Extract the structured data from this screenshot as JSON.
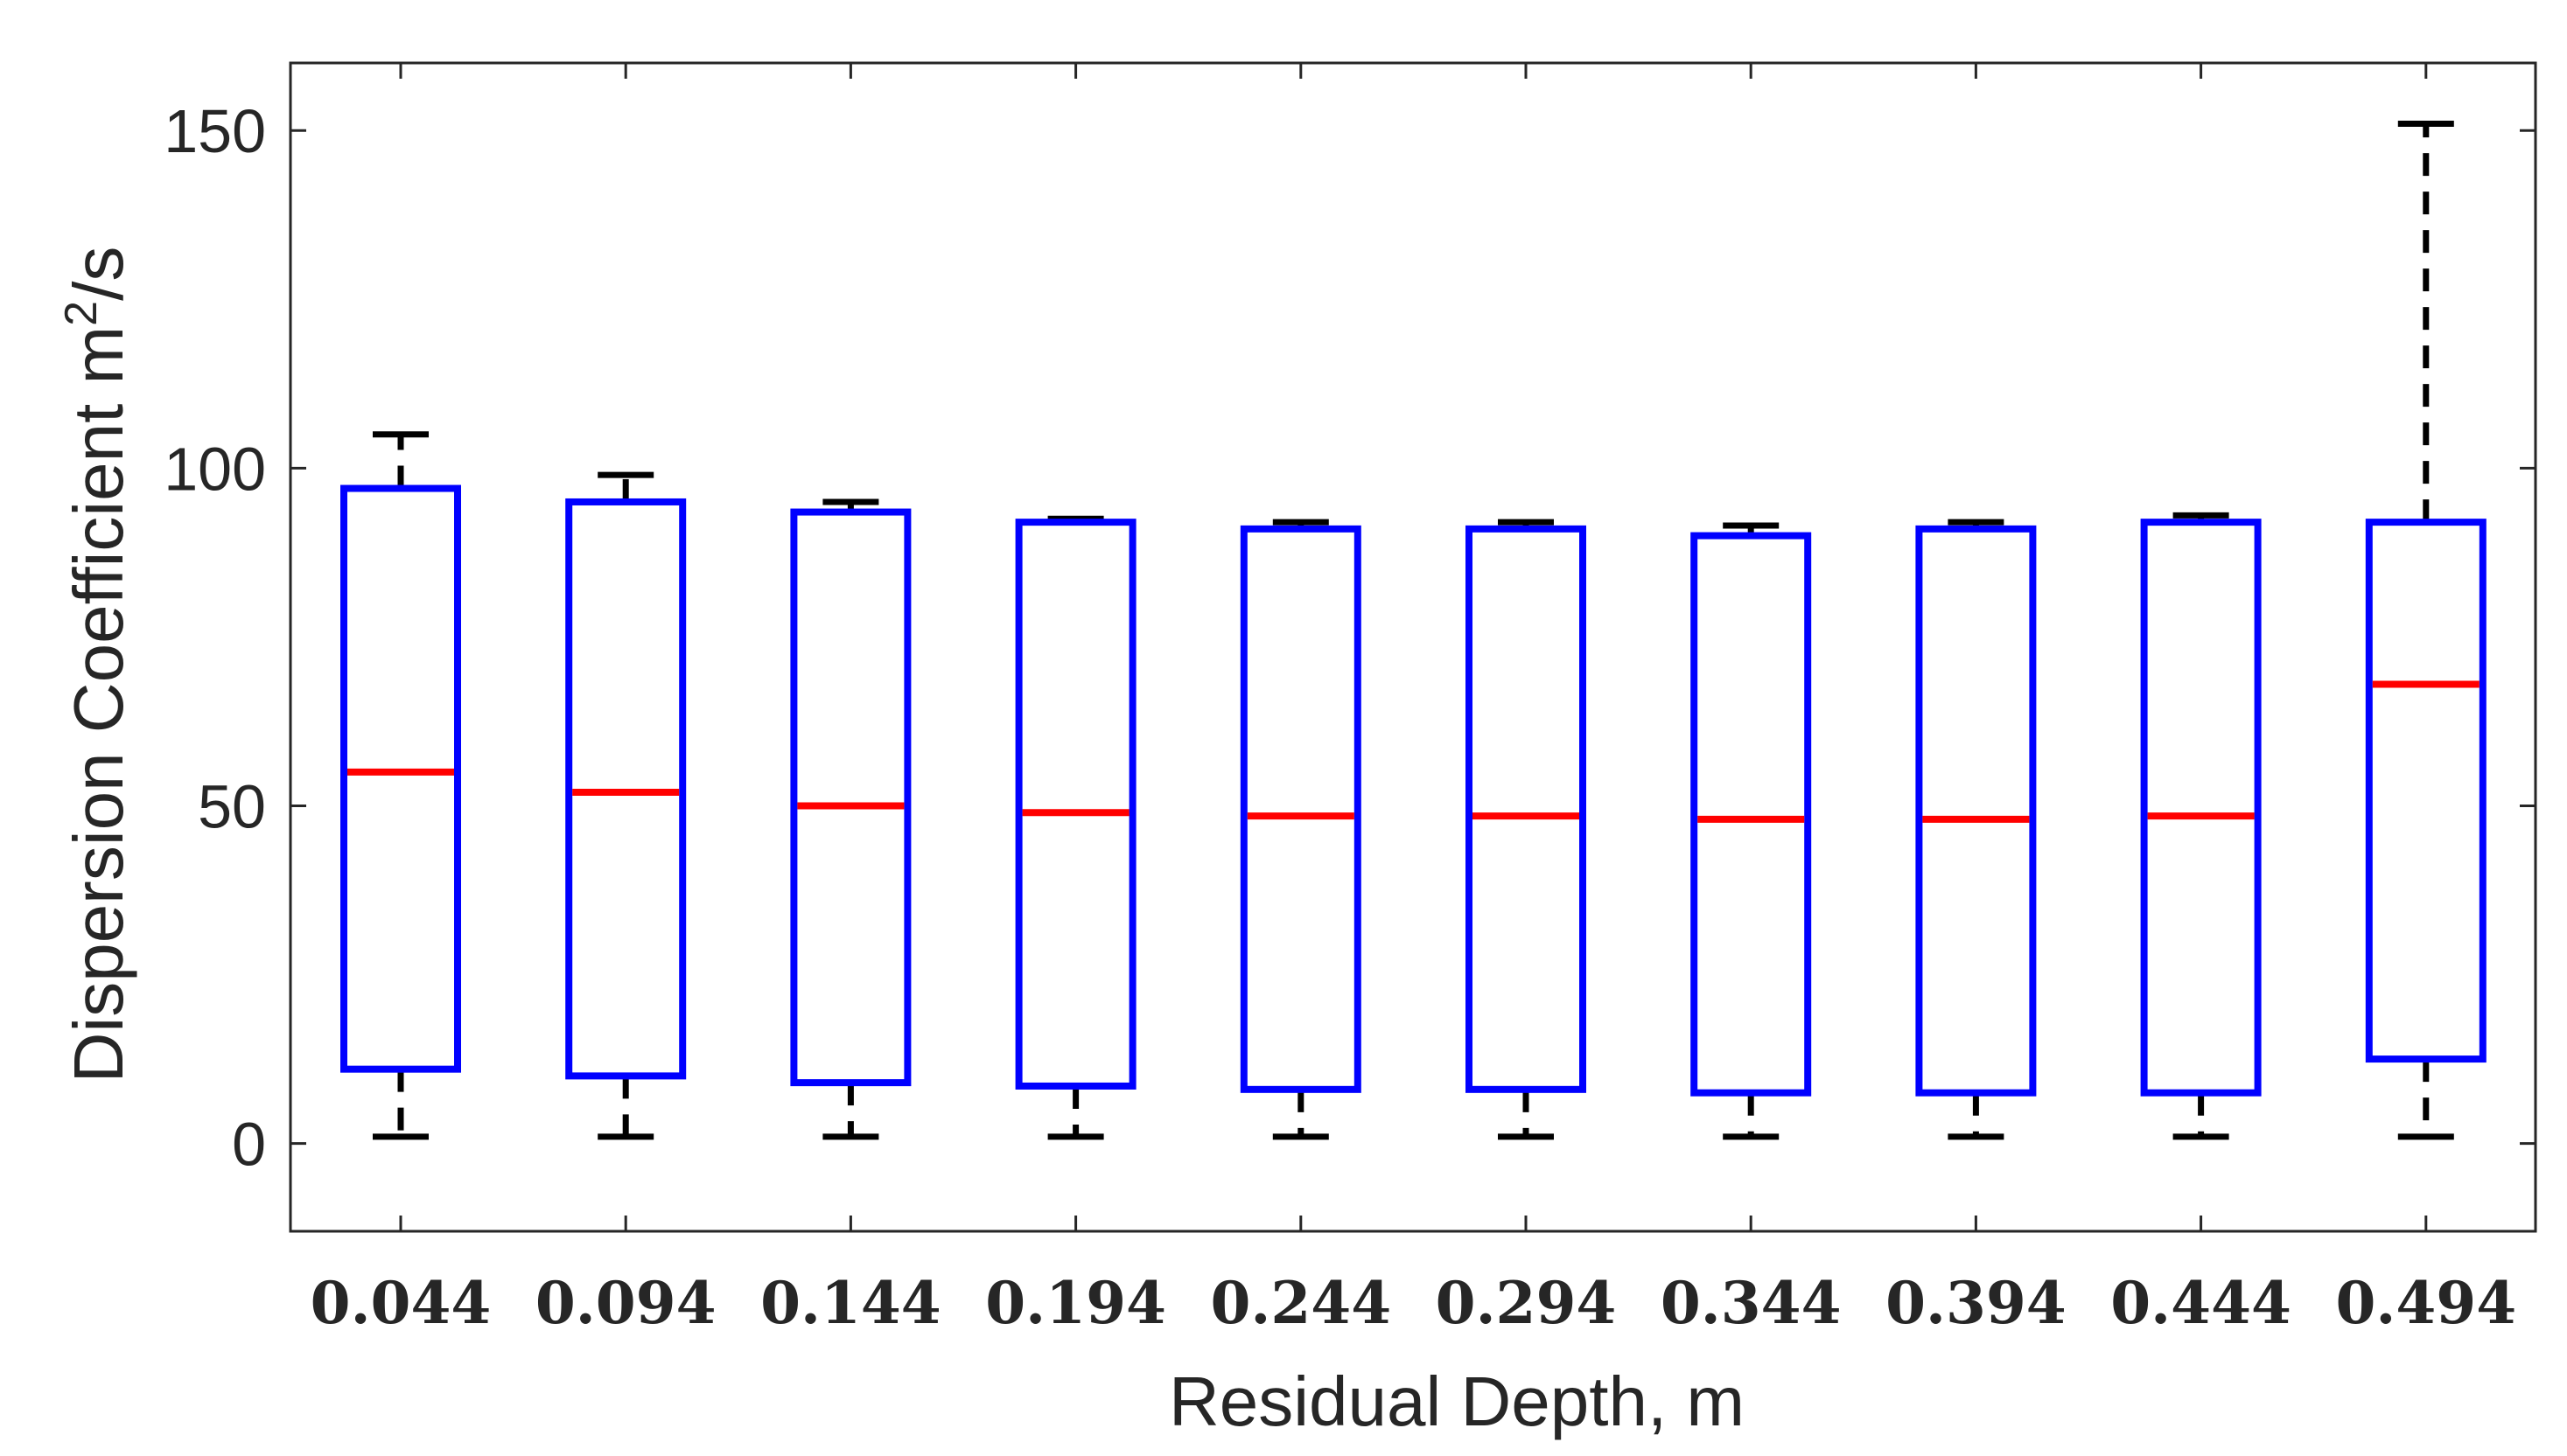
{
  "chart_data": {
    "type": "box",
    "title": "",
    "xlabel": "Residual Depth, m",
    "ylabel_main": "Dispersion Coefficient m",
    "ylabel_sup": "2",
    "ylabel_tail": "/s",
    "ylim": [
      -13,
      160
    ],
    "yticks": [
      0,
      50,
      100,
      150
    ],
    "ytick_labels": [
      "0",
      "50",
      "100",
      "150"
    ],
    "grid": false,
    "colors": {
      "box": "#0000ff",
      "median": "#ff0000",
      "whisker": "#000000",
      "axis": "#262626"
    },
    "categories": [
      "0.044",
      "0.094",
      "0.144",
      "0.194",
      "0.244",
      "0.294",
      "0.344",
      "0.394",
      "0.444",
      "0.494"
    ],
    "boxes": [
      {
        "whisker_low": 1,
        "q1": 11,
        "median": 55,
        "q3": 97,
        "whisker_high": 105
      },
      {
        "whisker_low": 1,
        "q1": 10,
        "median": 52,
        "q3": 95,
        "whisker_high": 99
      },
      {
        "whisker_low": 1,
        "q1": 9,
        "median": 50,
        "q3": 93.5,
        "whisker_high": 95
      },
      {
        "whisker_low": 1,
        "q1": 8.5,
        "median": 49,
        "q3": 92,
        "whisker_high": 92.5
      },
      {
        "whisker_low": 1,
        "q1": 8,
        "median": 48.5,
        "q3": 91,
        "whisker_high": 92
      },
      {
        "whisker_low": 1,
        "q1": 8,
        "median": 48.5,
        "q3": 91,
        "whisker_high": 92
      },
      {
        "whisker_low": 1,
        "q1": 7.5,
        "median": 48,
        "q3": 90,
        "whisker_high": 91.5
      },
      {
        "whisker_low": 1,
        "q1": 7.5,
        "median": 48,
        "q3": 91,
        "whisker_high": 92
      },
      {
        "whisker_low": 1,
        "q1": 7.5,
        "median": 48.5,
        "q3": 92,
        "whisker_high": 93
      },
      {
        "whisker_low": 1,
        "q1": 12.5,
        "median": 68,
        "q3": 92,
        "whisker_high": 151
      }
    ]
  }
}
